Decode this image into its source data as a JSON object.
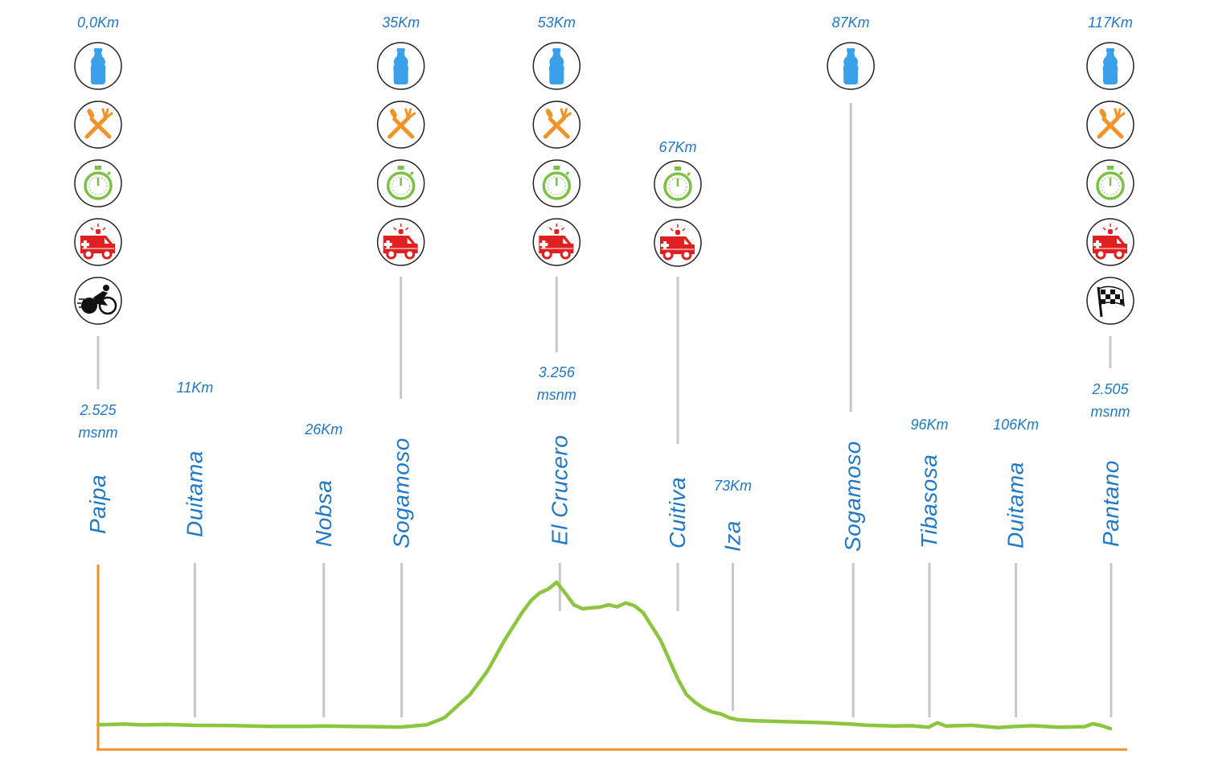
{
  "colors": {
    "text": "#1f78c8",
    "axis": "#f39226",
    "profile": "#8cc63f",
    "guide": "#c8c8c8",
    "water": "#3aa0ea",
    "food": "#f39226",
    "timer": "#7bc143",
    "ambulance": "#e02020",
    "icon_dark": "#111111"
  },
  "stations": [
    {
      "km": "0,0Km",
      "altitude": [
        "2.525",
        "msnm"
      ],
      "icons": [
        "water-bottle-icon",
        "fork-knife-icon",
        "stopwatch-icon",
        "ambulance-icon",
        "cyclist-icon"
      ]
    },
    {
      "km": "35Km",
      "icons": [
        "water-bottle-icon",
        "fork-knife-icon",
        "stopwatch-icon",
        "ambulance-icon"
      ]
    },
    {
      "km": "53Km",
      "altitude": [
        "3.256",
        "msnm"
      ],
      "icons": [
        "water-bottle-icon",
        "fork-knife-icon",
        "stopwatch-icon",
        "ambulance-icon"
      ]
    },
    {
      "km": "67Km",
      "icons": [
        "stopwatch-icon",
        "ambulance-icon"
      ]
    },
    {
      "km": "87Km",
      "icons": [
        "water-bottle-icon"
      ]
    },
    {
      "km": "117Km",
      "altitude": [
        "2.505",
        "msnm"
      ],
      "icons": [
        "water-bottle-icon",
        "fork-knife-icon",
        "stopwatch-icon",
        "ambulance-icon",
        "checkered-flag-icon"
      ]
    }
  ],
  "chart_data": {
    "type": "area",
    "title": "",
    "xlabel": "",
    "ylabel": "",
    "xlim": [
      0,
      117
    ],
    "locations": [
      {
        "name": "Paipa",
        "km": 0
      },
      {
        "name": "Duitama",
        "km": 11,
        "km_label": "11Km"
      },
      {
        "name": "Nobsa",
        "km": 26,
        "km_label": "26Km"
      },
      {
        "name": "Sogamoso",
        "km": 35
      },
      {
        "name": "El Crucero",
        "km": 53
      },
      {
        "name": "Cuitiva",
        "km": 67
      },
      {
        "name": "Iza",
        "km": 73,
        "km_label": "73Km"
      },
      {
        "name": "Sogamoso",
        "km": 87
      },
      {
        "name": "Tibasosa",
        "km": 96,
        "km_label": "96Km"
      },
      {
        "name": "Duitama",
        "km": 106,
        "km_label": "106Km"
      },
      {
        "name": "Pantano",
        "km": 117
      }
    ],
    "series": [
      {
        "x": [
          0,
          3,
          5,
          8,
          11,
          15,
          20,
          24,
          26,
          29,
          32,
          35,
          38,
          40,
          41,
          43,
          45,
          46,
          47,
          48,
          49,
          50,
          51,
          52,
          53,
          54,
          55,
          56,
          57,
          58,
          59,
          60,
          61,
          62,
          63,
          64,
          65,
          66,
          67,
          68,
          69,
          70,
          71,
          72,
          73,
          74,
          76,
          80,
          84,
          87,
          89,
          92,
          94,
          96,
          97,
          98,
          101,
          104,
          106,
          108,
          111,
          114,
          115,
          116,
          117
        ],
        "y": [
          2525,
          2528,
          2524,
          2526,
          2522,
          2521,
          2516,
          2516,
          2518,
          2516,
          2515,
          2513,
          2525,
          2560,
          2600,
          2680,
          2800,
          2880,
          2960,
          3030,
          3100,
          3160,
          3200,
          3220,
          3256,
          3200,
          3140,
          3120,
          3125,
          3128,
          3140,
          3130,
          3150,
          3135,
          3100,
          3030,
          2960,
          2860,
          2760,
          2680,
          2640,
          2610,
          2590,
          2580,
          2560,
          2550,
          2545,
          2540,
          2535,
          2528,
          2522,
          2518,
          2520,
          2512,
          2535,
          2518,
          2522,
          2510,
          2516,
          2520,
          2512,
          2515,
          2530,
          2520,
          2505
        ]
      }
    ]
  }
}
